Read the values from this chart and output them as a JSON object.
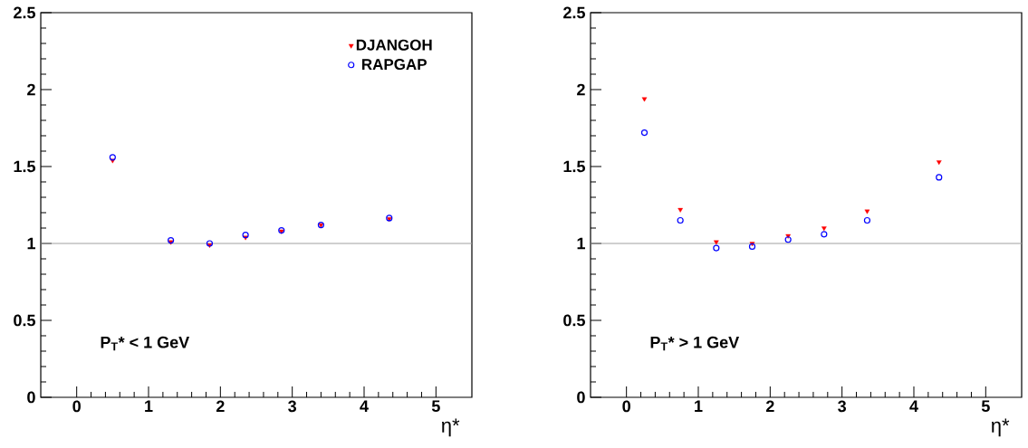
{
  "chart_data": [
    {
      "type": "scatter",
      "xlabel": "η*",
      "xlim": [
        -0.5,
        5.5
      ],
      "xticks": [
        0,
        1,
        2,
        3,
        4,
        5
      ],
      "ylim": [
        0,
        2.5
      ],
      "yticks": [
        0,
        0.5,
        1,
        1.5,
        2,
        2.5
      ],
      "legend": "top right",
      "grid": false,
      "annotations": [
        "P$_{T}$* < 1 GeV"
      ],
      "ref_lines": [
        {
          "axis": "y",
          "value": 1,
          "color": "#a0a0a0"
        }
      ],
      "series": [
        {
          "name": "DJANGOH",
          "color": "#ff0000",
          "marker": "triangle",
          "x": [
            0.5,
            1.31,
            1.85,
            2.35,
            2.85,
            3.4,
            4.35
          ],
          "values": [
            1.54,
            1.01,
            0.99,
            1.04,
            1.08,
            1.12,
            1.16
          ]
        },
        {
          "name": "RAPGAP",
          "color": "#0000ff",
          "marker": "circle",
          "x": [
            0.5,
            1.31,
            1.85,
            2.35,
            2.85,
            3.4,
            4.35
          ],
          "values": [
            1.56,
            1.02,
            1.0,
            1.055,
            1.085,
            1.12,
            1.165
          ]
        }
      ]
    },
    {
      "type": "scatter",
      "xlabel": "η*",
      "xlim": [
        -0.5,
        5.5
      ],
      "xticks": [
        0,
        1,
        2,
        3,
        4,
        5
      ],
      "ylim": [
        0,
        2.5
      ],
      "yticks": [
        0,
        0.5,
        1,
        1.5,
        2,
        2.5
      ],
      "grid": false,
      "annotations": [
        "P$_{T}$* > 1 GeV"
      ],
      "ref_lines": [
        {
          "axis": "y",
          "value": 1,
          "color": "#a0a0a0"
        }
      ],
      "series": [
        {
          "color": "#ff0000",
          "marker": "triangle",
          "x": [
            0.25,
            0.75,
            1.25,
            1.75,
            2.25,
            2.75,
            3.35,
            4.35
          ],
          "values": [
            1.94,
            1.22,
            1.01,
            1.0,
            1.05,
            1.1,
            1.21,
            1.53
          ]
        },
        {
          "color": "#0000ff",
          "marker": "circle",
          "x": [
            0.25,
            0.75,
            1.25,
            1.75,
            2.25,
            2.75,
            3.35,
            4.35
          ],
          "values": [
            1.72,
            1.15,
            0.97,
            0.98,
            1.025,
            1.06,
            1.15,
            1.43
          ]
        }
      ]
    }
  ]
}
